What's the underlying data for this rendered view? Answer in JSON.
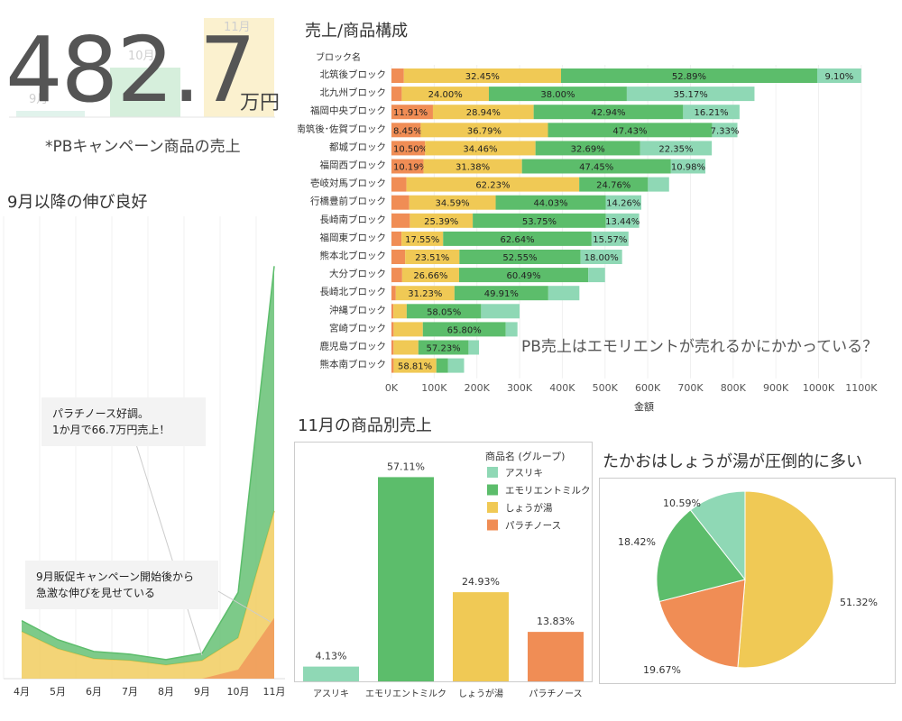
{
  "kpi": {
    "value": "482.7",
    "unit": "万円",
    "caption": "*PBキャンペーン商品の売上",
    "bg_months": [
      "9月",
      "10月",
      "11月"
    ]
  },
  "colors": {
    "asuriki": "#8fd8b5",
    "emolient": "#5cbd6b",
    "shouga": "#f0c955",
    "platinose": "#f08d55",
    "kpi_green": "#d6efdc",
    "kpi_yellow": "#fbf1cf",
    "kpi_teal": "#e1f3ec"
  },
  "headings": {
    "growth": "9月以降の伸び良好",
    "composition": "売上/商品構成",
    "product_sales": "11月の商品別売上",
    "pie": "たかおはしょうが湯が圧倒的に多い",
    "annotation": "PB売上はエモリエントが売れるかにかかっている？"
  },
  "callouts": {
    "top": [
      "パラチノース好調。",
      "1か月で66.7万円売上！"
    ],
    "bottom": [
      "9月販促キャンペーン開始後から",
      "急激な伸びを見せている"
    ]
  },
  "chart_data": [
    {
      "type": "area",
      "x": [
        "4月",
        "5月",
        "6月",
        "7月",
        "8月",
        "9月",
        "10月",
        "11月"
      ],
      "series": [
        {
          "name": "しょうが湯",
          "values": [
            52,
            33,
            22,
            20,
            15,
            20,
            45,
            185
          ]
        },
        {
          "name": "エモリエントミルク",
          "values": [
            12,
            10,
            8,
            7,
            6,
            8,
            50,
            270
          ]
        },
        {
          "name": "パラチノース",
          "values": [
            0,
            0,
            0,
            0,
            0,
            0,
            10,
            67
          ]
        }
      ]
    },
    {
      "type": "bar",
      "title": "売上/商品構成",
      "row_header": "ブロック名",
      "xlabel": "金額",
      "xlim": [
        0,
        1100000
      ],
      "ticks": [
        "0K",
        "100K",
        "200K",
        "300K",
        "400K",
        "500K",
        "600K",
        "700K",
        "800K",
        "900K",
        "1000K",
        "1100K"
      ],
      "series_order": [
        "パラチノース",
        "しょうが湯",
        "エモリエントミルク",
        "アスリキ"
      ],
      "rows": [
        {
          "name": "北筑後ブロック",
          "total": 1100000,
          "shares": [
            2.56,
            32.45,
            52.89,
            9.1
          ],
          "labels": [
            "",
            "32.45%",
            "52.89%",
            "9.10%"
          ]
        },
        {
          "name": "北九州ブロック",
          "total": 850000,
          "shares": [
            2.83,
            24.0,
            38.0,
            35.17
          ],
          "labels": [
            "",
            "24.00%",
            "38.00%",
            "35.17%"
          ]
        },
        {
          "name": "福岡中央ブロック",
          "total": 815000,
          "shares": [
            11.91,
            28.94,
            42.94,
            16.21
          ],
          "labels": [
            "11.91%",
            "28.94%",
            "42.94%",
            "16.21%"
          ]
        },
        {
          "name": "南筑後･佐賀ブロック",
          "total": 810000,
          "shares": [
            8.45,
            36.79,
            47.43,
            7.33
          ],
          "labels": [
            "8.45%",
            "36.79%",
            "47.43%",
            "7.33%"
          ]
        },
        {
          "name": "都城ブロック",
          "total": 750000,
          "shares": [
            10.5,
            34.46,
            32.69,
            22.35
          ],
          "labels": [
            "10.50%",
            "34.46%",
            "32.69%",
            "22.35%"
          ]
        },
        {
          "name": "福岡西ブロック",
          "total": 735000,
          "shares": [
            10.19,
            31.38,
            47.45,
            10.98
          ],
          "labels": [
            "10.19%",
            "31.38%",
            "47.45%",
            "10.98%"
          ]
        },
        {
          "name": "壱岐対馬ブロック",
          "total": 650000,
          "shares": [
            5.4,
            62.23,
            24.76,
            7.61
          ],
          "labels": [
            "",
            "62.23%",
            "24.76%",
            ""
          ]
        },
        {
          "name": "行橋豊前ブロック",
          "total": 585000,
          "shares": [
            7.12,
            34.59,
            44.03,
            14.26
          ],
          "labels": [
            "",
            "34.59%",
            "44.03%",
            "14.26%"
          ]
        },
        {
          "name": "長崎南ブロック",
          "total": 580000,
          "shares": [
            7.42,
            25.39,
            53.75,
            13.44
          ],
          "labels": [
            "",
            "25.39%",
            "53.75%",
            "13.44%"
          ]
        },
        {
          "name": "福岡東ブロック",
          "total": 555000,
          "shares": [
            4.24,
            17.55,
            62.64,
            15.57
          ],
          "labels": [
            "",
            "17.55%",
            "62.64%",
            "15.57%"
          ]
        },
        {
          "name": "熊本北ブロック",
          "total": 540000,
          "shares": [
            5.94,
            23.51,
            52.55,
            18.0
          ],
          "labels": [
            "",
            "23.51%",
            "52.55%",
            "18.00%"
          ]
        },
        {
          "name": "大分ブロック",
          "total": 500000,
          "shares": [
            5.0,
            26.66,
            60.49,
            7.85
          ],
          "labels": [
            "",
            "26.66%",
            "60.49%",
            ""
          ]
        },
        {
          "name": "長崎北ブロック",
          "total": 440000,
          "shares": [
            2.3,
            31.23,
            49.91,
            16.56
          ],
          "labels": [
            "",
            "31.23%",
            "49.91%",
            ""
          ]
        },
        {
          "name": "沖縄ブロック",
          "total": 300000,
          "shares": [
            1.5,
            10.4,
            58.05,
            30.05
          ],
          "labels": [
            "",
            "",
            "58.05%",
            ""
          ]
        },
        {
          "name": "宮崎ブロック",
          "total": 295000,
          "shares": [
            1.7,
            23.2,
            65.8,
            9.3
          ],
          "labels": [
            "",
            "",
            "65.80%",
            ""
          ]
        },
        {
          "name": "鹿児島ブロック",
          "total": 205000,
          "shares": [
            2.4,
            28.35,
            57.23,
            12.02
          ],
          "labels": [
            "",
            "",
            "57.23%",
            ""
          ]
        },
        {
          "name": "熊本南ブロック",
          "total": 170000,
          "shares": [
            3.0,
            58.81,
            16.2,
            21.99
          ],
          "labels": [
            "",
            "58.81%",
            "",
            ""
          ]
        }
      ]
    },
    {
      "type": "bar",
      "title": "11月の商品別売上",
      "categories": [
        "アスリキ",
        "エモリエントミルク",
        "しょうが湯",
        "パラチノース"
      ],
      "values": [
        4.13,
        57.11,
        24.93,
        13.83
      ],
      "value_labels": [
        "4.13%",
        "57.11%",
        "24.93%",
        "13.83%"
      ],
      "legend_title": "商品名 (グループ)",
      "legend": [
        "アスリキ",
        "エモリエントミルク",
        "しょうが湯",
        "パラチノース"
      ],
      "legend_position": "top-right"
    },
    {
      "type": "pie",
      "title": "たかおはしょうが湯が圧倒的に多い",
      "slices": [
        {
          "name": "しょうが湯",
          "value": 51.32,
          "label": "51.32%"
        },
        {
          "name": "パラチノース",
          "value": 19.67,
          "label": "19.67%"
        },
        {
          "name": "エモリエントミルク",
          "value": 18.42,
          "label": "18.42%"
        },
        {
          "name": "アスリキ",
          "value": 10.59,
          "label": "10.59%"
        }
      ]
    }
  ]
}
